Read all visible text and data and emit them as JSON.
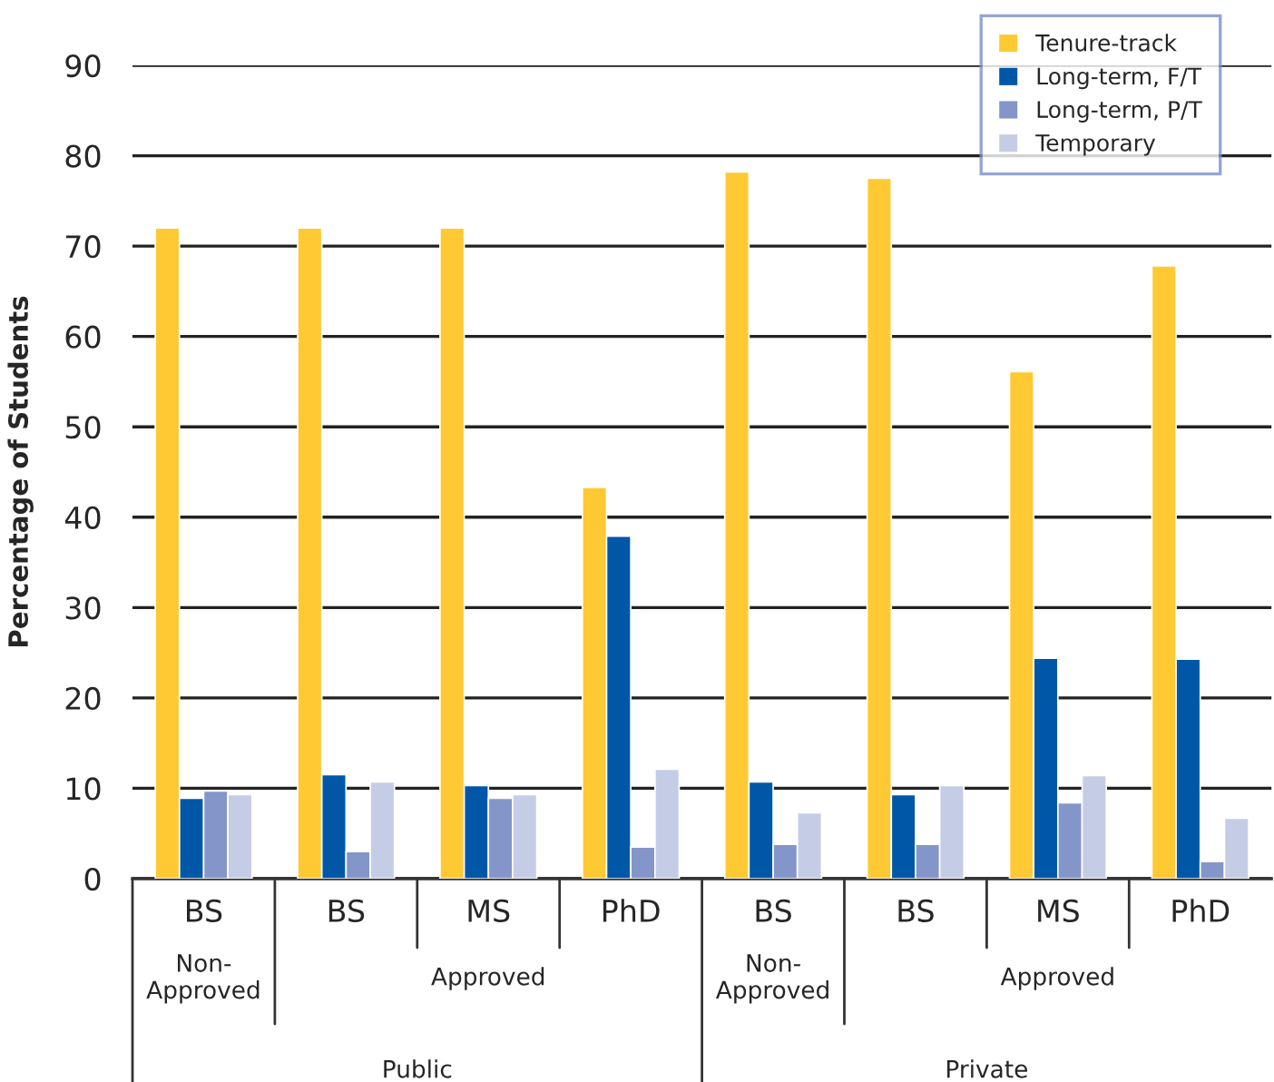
{
  "chart_data": {
    "type": "bar",
    "ylabel": "Percentage of Students",
    "categories": [
      "BS",
      "BS",
      "MS",
      "PhD",
      "BS",
      "BS",
      "MS",
      "PhD"
    ],
    "series": [
      {
        "name": "Tenure-track",
        "color": "#ffc933",
        "values": [
          72.0,
          72.0,
          72.0,
          43.3,
          78.2,
          77.5,
          56.1,
          67.8
        ]
      },
      {
        "name": "Long-term, F/T",
        "color": "#0057a8",
        "values": [
          8.9,
          11.5,
          10.3,
          37.9,
          10.7,
          9.3,
          24.4,
          24.3
        ]
      },
      {
        "name": "Long-term, P/T",
        "color": "#8496c9",
        "values": [
          9.7,
          3.0,
          8.9,
          3.5,
          3.8,
          3.8,
          8.4,
          1.9
        ]
      },
      {
        "name": "Temporary",
        "color": "#c5cde6",
        "values": [
          9.3,
          10.7,
          9.3,
          12.1,
          7.3,
          10.3,
          11.4,
          6.7
        ]
      }
    ],
    "ylim": [
      0,
      90
    ],
    "yticks": [
      0,
      10,
      20,
      30,
      40,
      50,
      60,
      70,
      80,
      90
    ],
    "grid": "y",
    "legend": "top right",
    "annotations": [
      "Non-\nApproved",
      "Approved",
      "Non-\nApproved",
      "Approved",
      "Public",
      "Private"
    ]
  }
}
